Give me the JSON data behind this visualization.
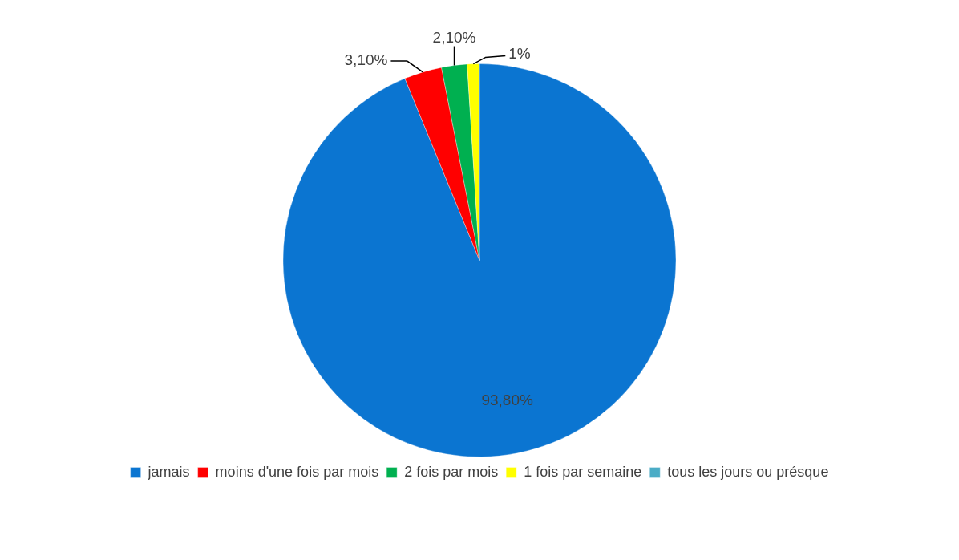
{
  "chart_data": {
    "type": "pie",
    "categories": [
      "jamais",
      "moins d'une fois par mois",
      "2 fois par mois",
      "1 fois par semaine",
      "tous les jours ou présque"
    ],
    "values": [
      93.8,
      3.1,
      2.1,
      1,
      0
    ],
    "colors": [
      "#0b75d1",
      "#ff0000",
      "#00b050",
      "#ffff00",
      "#4bacc6"
    ],
    "value_labels": [
      "93,80%",
      "3,10%",
      "2,10%",
      "1%",
      null
    ],
    "legend": "bottom"
  }
}
